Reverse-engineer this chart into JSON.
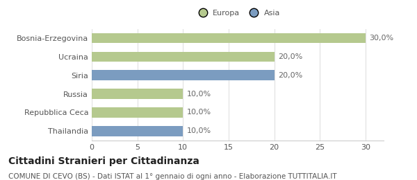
{
  "categories": [
    "Bosnia-Erzegovina",
    "Ucraina",
    "Siria",
    "Russia",
    "Repubblica Ceca",
    "Thailandia"
  ],
  "values": [
    30.0,
    20.0,
    20.0,
    10.0,
    10.0,
    10.0
  ],
  "colors": [
    "#b5c98e",
    "#b5c98e",
    "#7b9cc0",
    "#b5c98e",
    "#b5c98e",
    "#7b9cc0"
  ],
  "bar_labels": [
    "30,0%",
    "20,0%",
    "20,0%",
    "10,0%",
    "10,0%",
    "10,0%"
  ],
  "legend_labels": [
    "Europa",
    "Asia"
  ],
  "legend_colors": [
    "#b5c98e",
    "#7b9cc0"
  ],
  "xlim": [
    0,
    32
  ],
  "xticks": [
    0,
    5,
    10,
    15,
    20,
    25,
    30
  ],
  "title": "Cittadini Stranieri per Cittadinanza",
  "subtitle": "COMUNE DI CEVO (BS) - Dati ISTAT al 1° gennaio di ogni anno - Elaborazione TUTTITALIA.IT",
  "title_fontsize": 10,
  "subtitle_fontsize": 7.5,
  "label_fontsize": 8,
  "tick_fontsize": 8,
  "bar_height": 0.55,
  "bg_color": "#ffffff",
  "grid_color": "#e0e0e0"
}
